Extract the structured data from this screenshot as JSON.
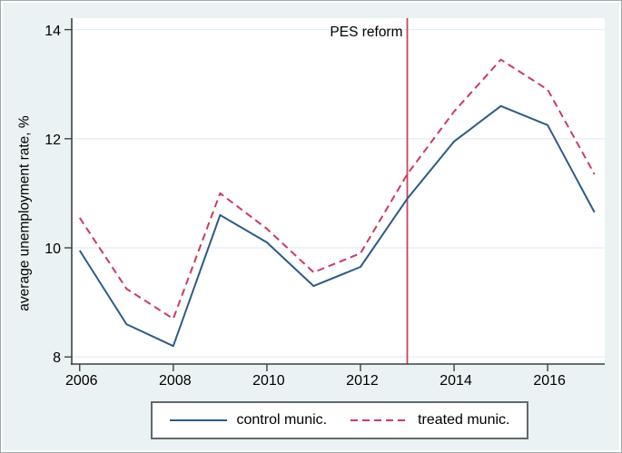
{
  "figure": {
    "bg_color": "#eaf2f3",
    "plot_bg": "#ffffff",
    "grid_color": "#e4eef5",
    "axis_color": "#404040",
    "legend_border": "#62696c",
    "text_color": "#000000"
  },
  "chart_data": {
    "type": "line",
    "title": "",
    "xlabel": "",
    "ylabel": "average unemployment rate, %",
    "x": [
      2006,
      2007,
      2008,
      2009,
      2010,
      2011,
      2012,
      2013,
      2014,
      2015,
      2016,
      2017
    ],
    "series": [
      {
        "name": "control munic.",
        "style": "solid",
        "color": "#2d5a87",
        "values": [
          9.95,
          8.6,
          8.2,
          10.6,
          10.1,
          9.3,
          9.65,
          10.9,
          11.95,
          12.6,
          12.25,
          10.65
        ]
      },
      {
        "name": "treated munic.",
        "style": "dashed",
        "color": "#cb3a5f",
        "values": [
          10.55,
          9.25,
          8.7,
          11.0,
          10.35,
          9.55,
          9.9,
          11.35,
          12.5,
          13.45,
          12.9,
          11.35
        ]
      }
    ],
    "x_ticks": [
      2006,
      2008,
      2010,
      2012,
      2014,
      2016
    ],
    "y_ticks": [
      8,
      10,
      12,
      14
    ],
    "xlim": [
      2005.83,
      2017.22
    ],
    "ylim": [
      7.87,
      14.21
    ],
    "grid": "horizontal",
    "legend_position": "bottom-center",
    "annotations": [
      {
        "type": "vline",
        "x": 2013,
        "color": "#c6455f",
        "label": "PES reform"
      }
    ]
  }
}
